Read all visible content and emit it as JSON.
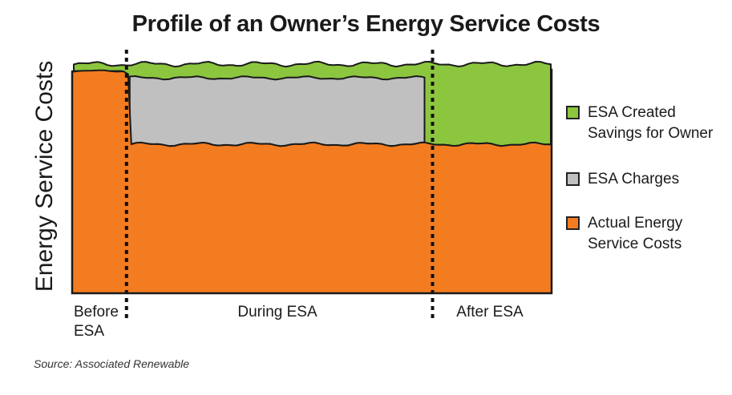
{
  "chart_data": {
    "type": "area",
    "title": "Profile of an Owner’s Energy Service Costs",
    "ylabel": "Energy Service Costs",
    "xlabel": "",
    "phases": [
      "Before\nESA",
      "During ESA",
      "After ESA"
    ],
    "phase_boundaries": [
      0.11,
      0.745
    ],
    "ylim": [
      0,
      1
    ],
    "series": [
      {
        "name": "Actual Energy Service Costs",
        "color": "#f47c20",
        "levels": {
          "before": 0.97,
          "during": 0.65,
          "after": 0.65
        }
      },
      {
        "name": "ESA Charges",
        "color": "#c0c0c0",
        "levels": {
          "before": 0.0,
          "during": 0.29,
          "after": 0.0
        }
      },
      {
        "name": "ESA Created Savings for Owner",
        "color": "#8cc63f",
        "levels": {
          "before": 0.0,
          "during": 0.06,
          "after": 0.33
        }
      }
    ],
    "legend_position": "right",
    "grid": false
  },
  "source": "Source: Associated Renewable"
}
